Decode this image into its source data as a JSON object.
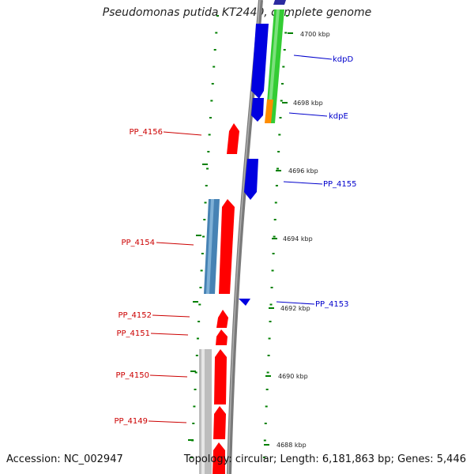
{
  "title": "Pseudomonas putida KT2440, complete genome",
  "accession": "Accession: NC_002947",
  "summary": "Topology: circular; Length: 6,181,863 bp; Genes: 5,446",
  "colors": {
    "backbone": "#808080",
    "forward_gene": "#ff0000",
    "reverse_gene": "#0000e0",
    "tick": "#008000",
    "forward_label": "#cc0000",
    "reverse_label": "#0000cc",
    "cds_steel": "#4682b4",
    "cds_green": "#33cc33",
    "cds_orange": "#ff8c00",
    "cds_grey": "#bbbbbb"
  },
  "scale_labels": [
    "4700 kbp",
    "4698 kbp",
    "4696 kbp",
    "4694 kbp",
    "4692 kbp",
    "4690 kbp",
    "4688 kbp"
  ],
  "gene_labels": {
    "kdpD": "kdpD",
    "kdpE": "kdpE",
    "pp4155": "PP_4155",
    "pp4153": "PP_4153",
    "pp4156": "PP_4156",
    "pp4154": "PP_4154",
    "pp4152": "PP_4152",
    "pp4151": "PP_4151",
    "pp4150": "PP_4150",
    "pp4149": "PP_4149"
  }
}
